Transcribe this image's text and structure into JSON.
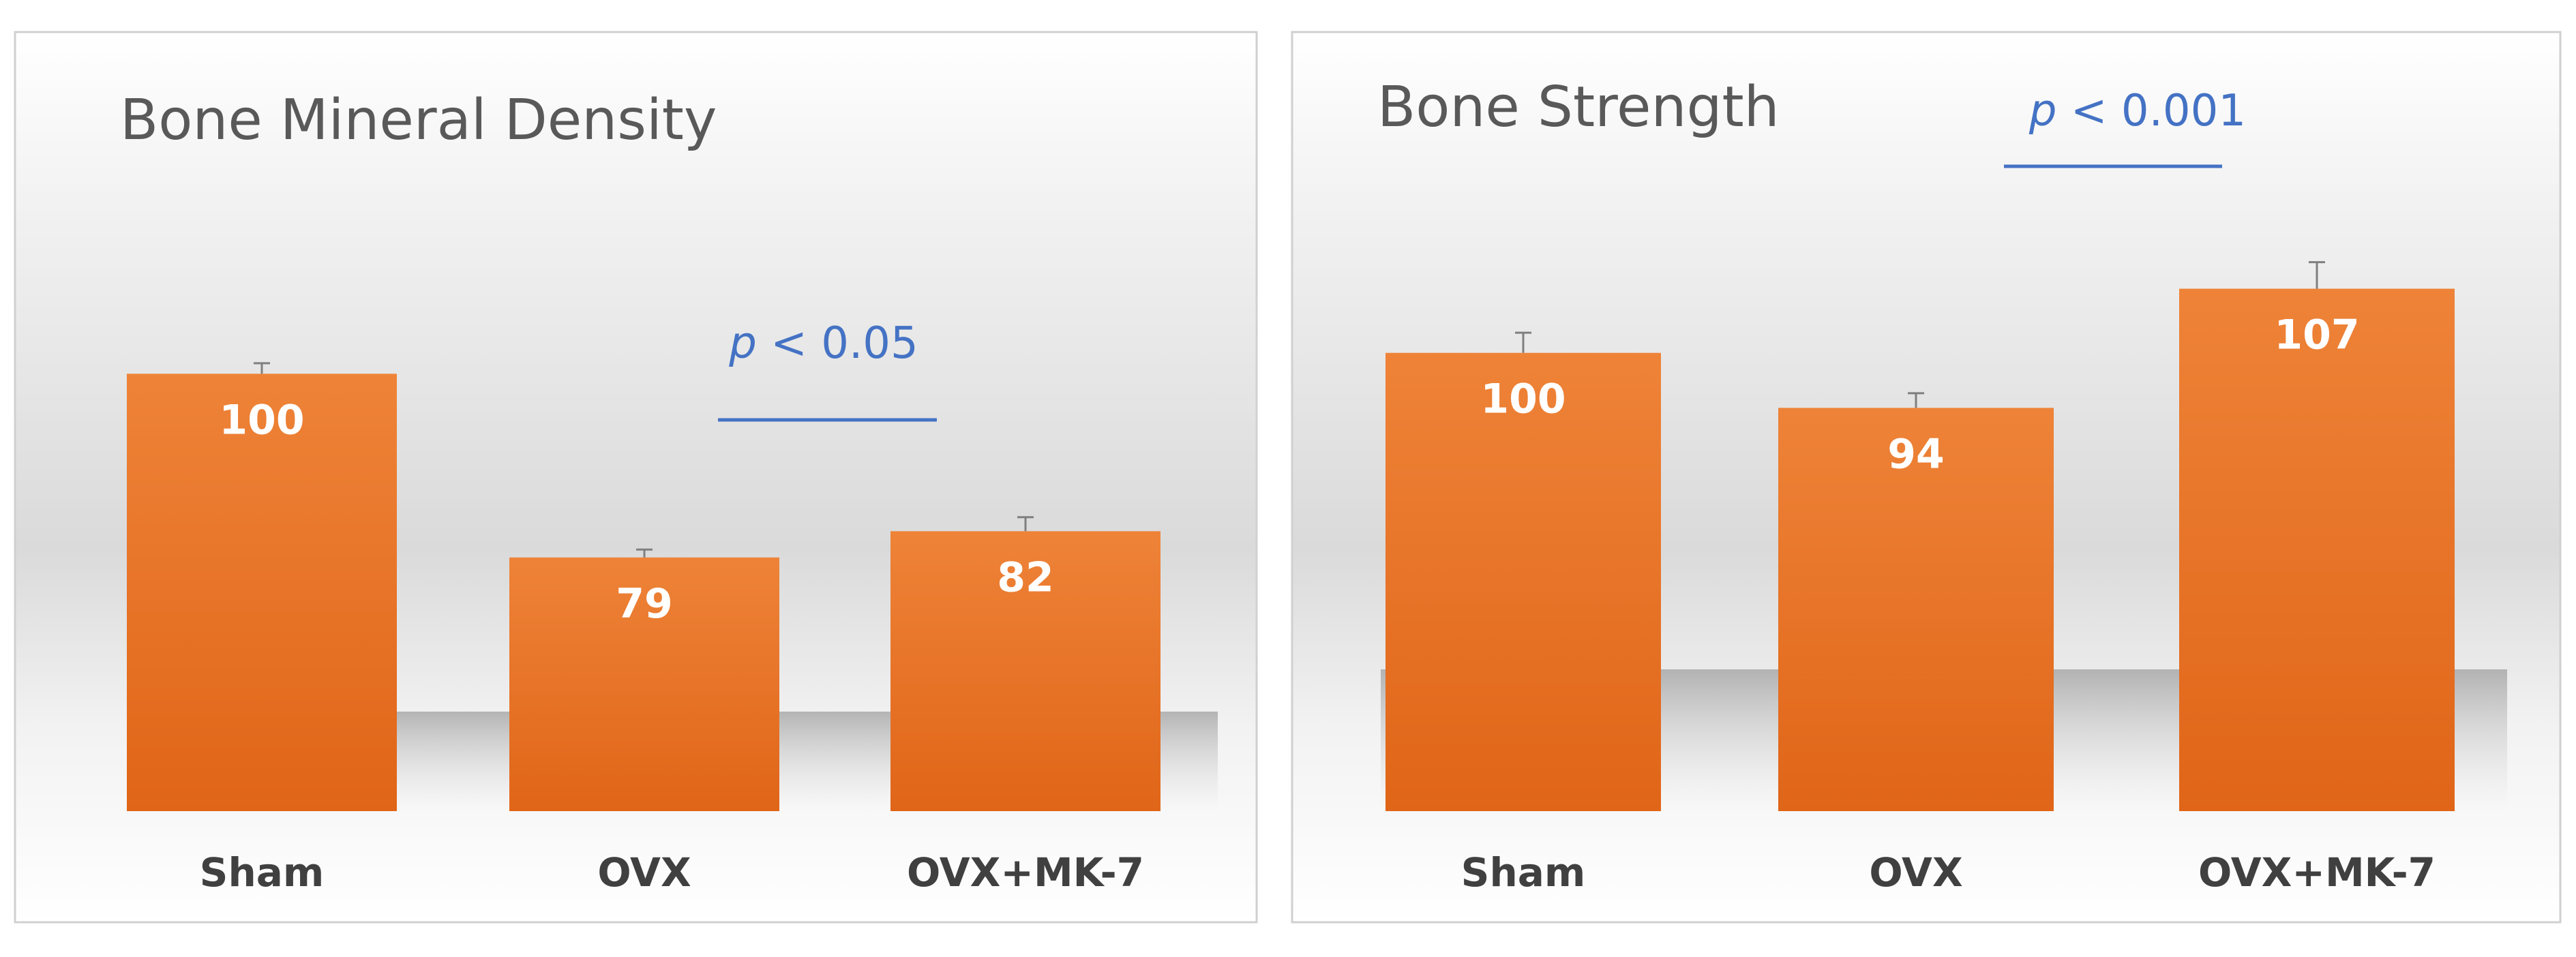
{
  "chart_data": [
    {
      "type": "bar",
      "title": "Bone Mineral Density",
      "categories": [
        "Sham",
        "OVX",
        "OVX+MK-7"
      ],
      "values": [
        100,
        79,
        82
      ],
      "error": [
        1.2,
        0.9,
        1.6
      ],
      "data_labels": [
        "100",
        "79",
        "82"
      ],
      "ylim": [
        50,
        110
      ],
      "grid": false,
      "legend": "none",
      "significance": {
        "between": [
          "OVX",
          "OVX+MK-7"
        ],
        "symbol": "p",
        "operator": "<",
        "value": "0.05"
      },
      "bar_color": "#e8732c"
    },
    {
      "type": "bar",
      "title": "Bone Strength",
      "categories": [
        "Sham",
        "OVX",
        "OVX+MK-7"
      ],
      "values": [
        100,
        94,
        107
      ],
      "error": [
        2.2,
        1.6,
        2.9
      ],
      "data_labels": [
        "100",
        "94",
        "107"
      ],
      "ylim": [
        50,
        115
      ],
      "grid": false,
      "legend": "none",
      "significance": {
        "between": [
          "OVX",
          "OVX+MK-7"
        ],
        "symbol": "p",
        "operator": "<",
        "value": "0.001"
      },
      "bar_color": "#e8732c"
    }
  ]
}
